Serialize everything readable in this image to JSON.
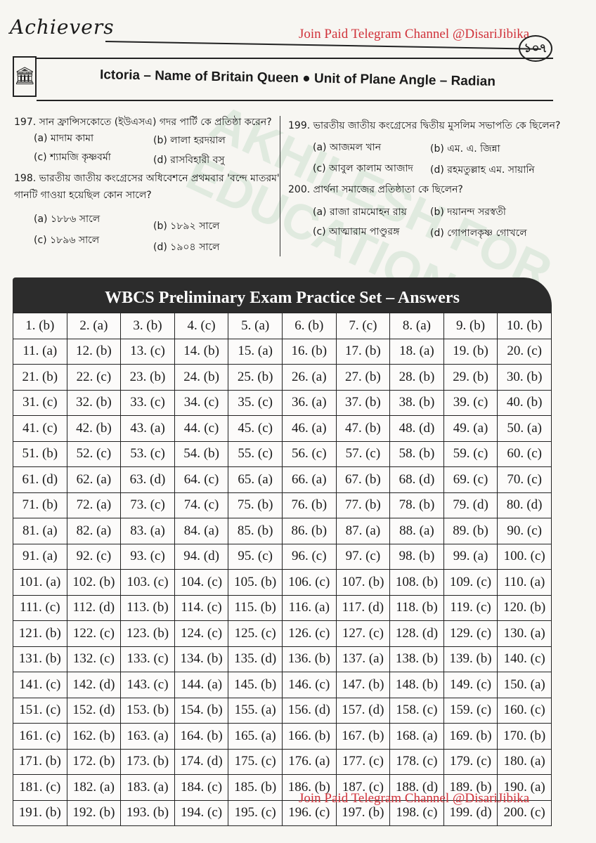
{
  "header": {
    "brand": "Achievers",
    "telegram": "Join Paid Telegram Channel @DisariJibika",
    "page_number": "১০৭",
    "subtitle": "Ictoria – Name of Britain Queen ● Unit of Plane Angle – Radian"
  },
  "watermark": "AKHILESH FOR EDUCATION",
  "questions": [
    {
      "num": "197.",
      "text": "সান ফ্রান্সিসকোতে (ইউএসএ) গদর পার্টি কে প্রতিষ্ঠা করেন?",
      "options": [
        "(a) মাদাম কামা",
        "(b) লালা হরদয়াল",
        "(c) শ্যামজি কৃষ্ণবর্মা",
        "(d) রাসবিহারী বসু"
      ]
    },
    {
      "num": "198.",
      "text": "ভারতীয় জাতীয় কংগ্রেসের অধিবেশনে প্রথমবার 'বন্দে মাতরম' গানটি গাওয়া হয়েছিল কোন সালে?",
      "options": [
        "(a) ১৮৮৬ সালে",
        "(b) ১৮৯২ সালে",
        "(c) ১৮৯৬ সালে",
        "(d) ১৯০৪ সালে"
      ]
    },
    {
      "num": "199.",
      "text": "ভারতীয় জাতীয় কংগ্রেসের দ্বিতীয় মুসলিম সভাপতি কে ছিলেন?",
      "options": [
        "(a) আজমল খান",
        "(b) এম. এ. জিন্না",
        "(c) আবুল কালাম আজাদ",
        "(d) রহমতুল্লাহ এম. সায়ানি"
      ]
    },
    {
      "num": "200.",
      "text": "প্রার্থনা সমাজের প্রতিষ্ঠাতা কে ছিলেন?",
      "options": [
        "(a) রাজা রামমোহন রায়",
        "(b) দয়ানন্দ সরস্বতী",
        "(c) আত্মারাম পাণ্ডুরঙ্গ",
        "(d) গোপালকৃষ্ণ গোখলে"
      ]
    }
  ],
  "answers": {
    "title": "WBCS Preliminary Exam Practice Set – Answers",
    "rows": [
      [
        "1. (b)",
        "2. (a)",
        "3. (b)",
        "4. (c)",
        "5. (a)",
        "6. (b)",
        "7. (c)",
        "8. (a)",
        "9. (b)",
        "10. (b)"
      ],
      [
        "11. (a)",
        "12. (b)",
        "13. (c)",
        "14. (b)",
        "15. (a)",
        "16. (b)",
        "17. (b)",
        "18. (a)",
        "19. (b)",
        "20. (c)"
      ],
      [
        "21. (b)",
        "22. (c)",
        "23. (b)",
        "24. (b)",
        "25. (b)",
        "26. (a)",
        "27. (b)",
        "28. (b)",
        "29. (b)",
        "30. (b)"
      ],
      [
        "31. (c)",
        "32. (b)",
        "33. (c)",
        "34. (c)",
        "35. (c)",
        "36. (a)",
        "37. (b)",
        "38. (b)",
        "39. (c)",
        "40. (b)"
      ],
      [
        "41. (c)",
        "42. (b)",
        "43. (a)",
        "44. (c)",
        "45. (c)",
        "46. (a)",
        "47. (b)",
        "48. (d)",
        "49. (a)",
        "50. (a)"
      ],
      [
        "51. (b)",
        "52. (c)",
        "53. (c)",
        "54. (b)",
        "55. (c)",
        "56. (c)",
        "57. (c)",
        "58. (b)",
        "59. (c)",
        "60. (c)"
      ],
      [
        "61. (d)",
        "62. (a)",
        "63. (d)",
        "64. (c)",
        "65. (a)",
        "66. (a)",
        "67. (b)",
        "68. (d)",
        "69. (c)",
        "70. (c)"
      ],
      [
        "71. (b)",
        "72. (a)",
        "73. (c)",
        "74. (c)",
        "75. (b)",
        "76. (b)",
        "77. (b)",
        "78. (b)",
        "79. (d)",
        "80. (d)"
      ],
      [
        "81. (a)",
        "82. (a)",
        "83. (a)",
        "84. (a)",
        "85. (b)",
        "86. (b)",
        "87. (a)",
        "88. (a)",
        "89. (b)",
        "90. (c)"
      ],
      [
        "91. (a)",
        "92. (c)",
        "93. (c)",
        "94. (d)",
        "95. (c)",
        "96. (c)",
        "97. (c)",
        "98. (b)",
        "99. (a)",
        "100. (c)"
      ],
      [
        "101. (a)",
        "102. (b)",
        "103. (c)",
        "104. (c)",
        "105. (b)",
        "106. (c)",
        "107. (b)",
        "108. (b)",
        "109. (c)",
        "110. (a)"
      ],
      [
        "111. (c)",
        "112. (d)",
        "113. (b)",
        "114. (c)",
        "115. (b)",
        "116. (a)",
        "117. (d)",
        "118. (b)",
        "119. (c)",
        "120. (b)"
      ],
      [
        "121. (b)",
        "122. (c)",
        "123. (b)",
        "124. (c)",
        "125. (c)",
        "126. (c)",
        "127. (c)",
        "128. (d)",
        "129. (c)",
        "130. (a)"
      ],
      [
        "131. (b)",
        "132. (c)",
        "133. (c)",
        "134. (b)",
        "135. (d)",
        "136. (b)",
        "137. (a)",
        "138. (b)",
        "139. (b)",
        "140. (c)"
      ],
      [
        "141. (c)",
        "142. (d)",
        "143. (c)",
        "144. (a)",
        "145. (b)",
        "146. (c)",
        "147. (b)",
        "148. (b)",
        "149. (c)",
        "150. (a)"
      ],
      [
        "151. (c)",
        "152. (d)",
        "153. (b)",
        "154. (b)",
        "155. (a)",
        "156. (d)",
        "157. (d)",
        "158. (c)",
        "159. (c)",
        "160. (c)"
      ],
      [
        "161. (c)",
        "162. (b)",
        "163. (a)",
        "164. (b)",
        "165. (a)",
        "166. (b)",
        "167. (b)",
        "168. (a)",
        "169. (b)",
        "170. (b)"
      ],
      [
        "171. (b)",
        "172. (b)",
        "173. (b)",
        "174. (d)",
        "175. (c)",
        "176. (a)",
        "177. (c)",
        "178. (c)",
        "179. (c)",
        "180. (a)"
      ],
      [
        "181. (c)",
        "182. (a)",
        "183. (a)",
        "184. (c)",
        "185. (b)",
        "186. (b)",
        "187. (c)",
        "188. (d)",
        "189. (b)",
        "190. (a)"
      ],
      [
        "191. (b)",
        "192. (b)",
        "193. (b)",
        "194. (c)",
        "195. (c)",
        "196. (c)",
        "197. (b)",
        "198. (c)",
        "199. (d)",
        "200. (c)"
      ]
    ]
  }
}
